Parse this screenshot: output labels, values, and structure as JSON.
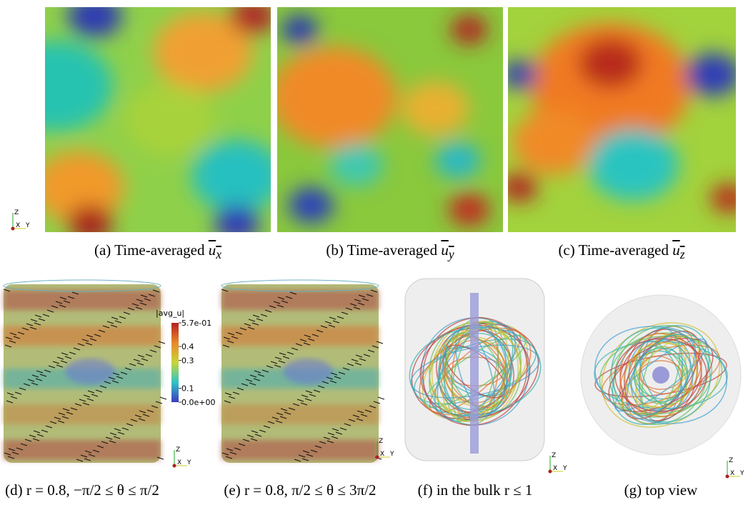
{
  "panels": [
    {
      "label": "(a)",
      "text": "Time-averaged",
      "var": "u",
      "sub": "x"
    },
    {
      "label": "(b)",
      "text": "Time-averaged",
      "var": "u",
      "sub": "y"
    },
    {
      "label": "(c)",
      "text": "Time-averaged",
      "var": "u",
      "sub": "z"
    },
    {
      "label": "(d)",
      "text": "r = 0.8, −π/2 ≤ θ ≤ π/2"
    },
    {
      "label": "(e)",
      "text": "r = 0.8, π/2 ≤ θ ≤ 3π/2"
    },
    {
      "label": "(f)",
      "text": "in the bulk r ≤ 1"
    },
    {
      "label": "(g)",
      "text": "top view"
    }
  ],
  "colorbar": {
    "title": "|avg_u|",
    "lim": [
      0,
      0.57
    ],
    "ticks": [
      {
        "value": 0.57,
        "label": "5.7e-01"
      },
      0.4,
      0.3,
      0.1,
      {
        "value": 0,
        "label": "0.0e+00"
      }
    ]
  },
  "axes_labels": {
    "z": "Z",
    "x": "X",
    "y": "Y"
  }
}
